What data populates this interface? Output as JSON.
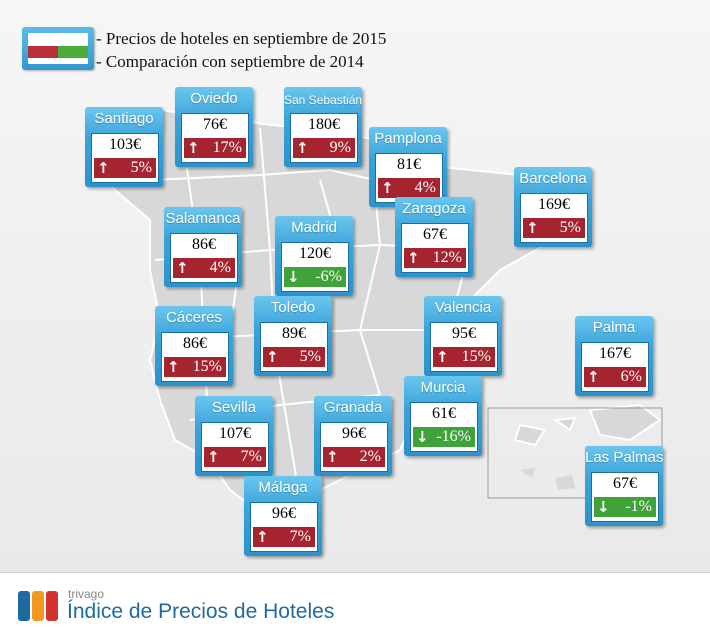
{
  "legend": {
    "line1": "- Precios de hoteles en septiembre de 2015",
    "line2": "- Comparación con septiembre de 2014",
    "colors": {
      "up": "#a6242f",
      "down": "#3fa339",
      "frame": "#2f97cf"
    }
  },
  "cities": [
    {
      "name": "Santiago",
      "price": "103€",
      "change": "5%",
      "direction": "up"
    },
    {
      "name": "Oviedo",
      "price": "76€",
      "change": "17%",
      "direction": "up"
    },
    {
      "name": "San Sebastián",
      "price": "180€",
      "change": "9%",
      "direction": "up"
    },
    {
      "name": "Pamplona",
      "price": "81€",
      "change": "4%",
      "direction": "up"
    },
    {
      "name": "Barcelona",
      "price": "169€",
      "change": "5%",
      "direction": "up"
    },
    {
      "name": "Salamanca",
      "price": "86€",
      "change": "4%",
      "direction": "up"
    },
    {
      "name": "Madrid",
      "price": "120€",
      "change": "-6%",
      "direction": "down"
    },
    {
      "name": "Zaragoza",
      "price": "67€",
      "change": "12%",
      "direction": "up"
    },
    {
      "name": "Cáceres",
      "price": "86€",
      "change": "15%",
      "direction": "up"
    },
    {
      "name": "Toledo",
      "price": "89€",
      "change": "5%",
      "direction": "up"
    },
    {
      "name": "Valencia",
      "price": "95€",
      "change": "15%",
      "direction": "up"
    },
    {
      "name": "Palma",
      "price": "167€",
      "change": "6%",
      "direction": "up"
    },
    {
      "name": "Sevilla",
      "price": "107€",
      "change": "7%",
      "direction": "up"
    },
    {
      "name": "Granada",
      "price": "96€",
      "change": "2%",
      "direction": "up"
    },
    {
      "name": "Murcia",
      "price": "61€",
      "change": "-16%",
      "direction": "down"
    },
    {
      "name": "Las Palmas",
      "price": "67€",
      "change": "-1%",
      "direction": "down"
    },
    {
      "name": "Málaga",
      "price": "96€",
      "change": "7%",
      "direction": "up"
    }
  ],
  "footer": {
    "brand": "trivago",
    "title": "Índice de Precios de Hoteles",
    "logo_colors": [
      "#1e6aa0",
      "#f19a1f",
      "#d2332f"
    ]
  }
}
